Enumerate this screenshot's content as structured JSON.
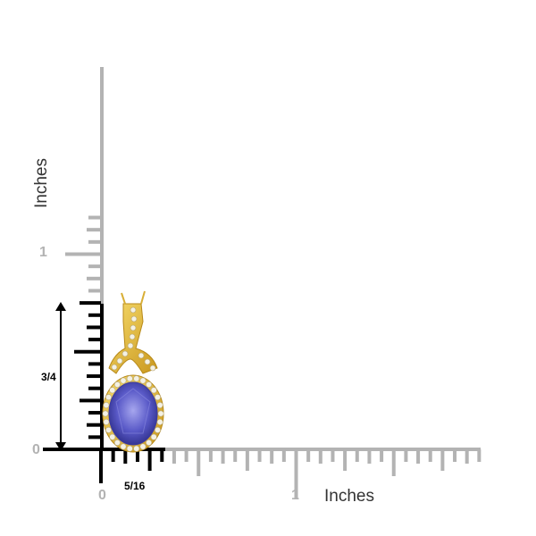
{
  "ruler": {
    "unit_label_vertical": "Inches",
    "unit_label_horizontal": "Inches",
    "vertical_labels": [
      "0",
      "1"
    ],
    "horizontal_labels": [
      "0",
      "1"
    ],
    "height_measure": "3/4",
    "width_measure": "5/16",
    "ruler_color": "#b3b3b3",
    "measure_color": "#000000"
  },
  "product": {
    "stone_color": "#5a5ac8",
    "metal_color": "#e8c24a"
  }
}
